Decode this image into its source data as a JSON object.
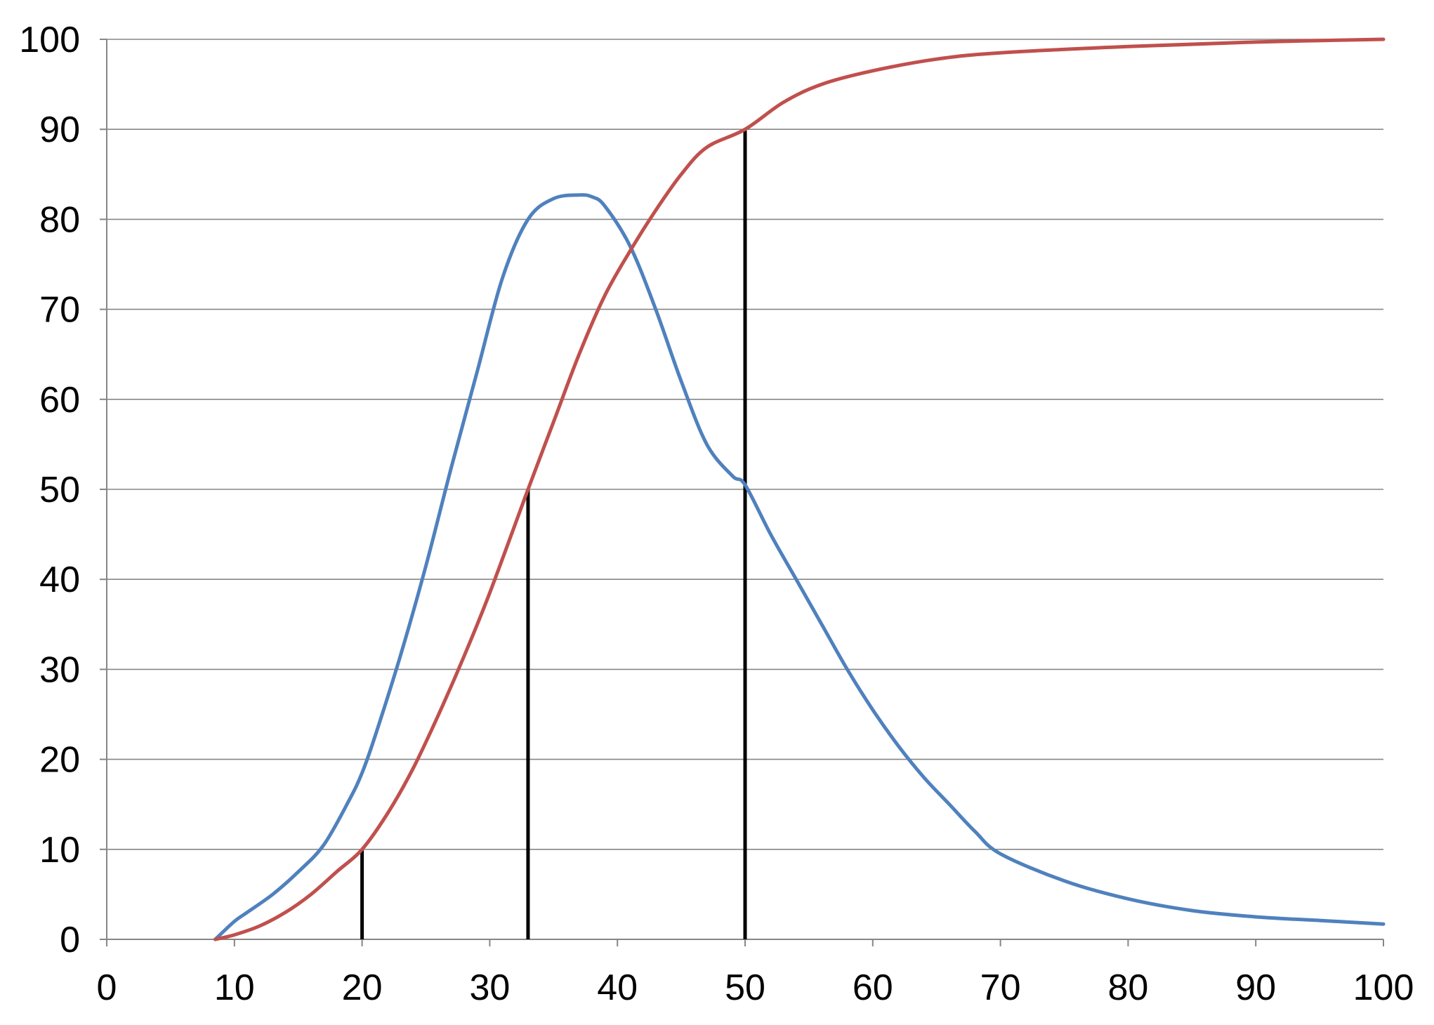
{
  "chart_data": {
    "type": "line",
    "title": "",
    "xlabel": "",
    "ylabel": "",
    "xlim": [
      0,
      100
    ],
    "ylim": [
      0,
      100
    ],
    "x_ticks": [
      0,
      10,
      20,
      30,
      40,
      50,
      60,
      70,
      80,
      90,
      100
    ],
    "y_ticks": [
      0,
      10,
      20,
      30,
      40,
      50,
      60,
      70,
      80,
      90,
      100
    ],
    "x_tick_labels": [
      "0",
      "10",
      "20",
      "30",
      "40",
      "50",
      "60",
      "70",
      "80",
      "90",
      "100"
    ],
    "y_tick_labels": [
      "0",
      "10",
      "20",
      "30",
      "40",
      "50",
      "60",
      "70",
      "80",
      "90",
      "100"
    ],
    "grid": "horizontal",
    "legend": "none",
    "series": [
      {
        "color": "#4F81BD",
        "x": [
          8.5,
          10,
          11,
          13,
          15,
          17,
          19,
          20,
          21,
          23,
          25,
          27,
          29,
          31,
          33,
          35,
          37,
          38,
          39,
          41,
          43,
          45,
          47,
          49,
          50,
          52,
          54,
          56,
          58,
          60,
          62,
          64,
          66,
          68,
          70,
          75,
          80,
          85,
          90,
          95,
          100
        ],
        "y": [
          0,
          2,
          3,
          5,
          7.5,
          10.5,
          15.5,
          18.5,
          22.5,
          31.5,
          41.5,
          52.5,
          63,
          73.5,
          80,
          82.3,
          82.7,
          82.5,
          81.5,
          77,
          70,
          62,
          55,
          51.5,
          50.5,
          45,
          40,
          35,
          30,
          25.5,
          21.5,
          18,
          15,
          12,
          9.5,
          6.5,
          4.5,
          3.2,
          2.5,
          2.1,
          1.7
        ]
      },
      {
        "color": "#C0504D",
        "x": [
          8.5,
          10,
          12,
          14,
          16,
          18,
          20,
          22,
          24,
          26,
          28,
          30,
          33,
          35,
          37,
          39,
          41,
          43,
          45,
          47,
          50,
          53,
          56,
          60,
          65,
          70,
          80,
          90,
          100
        ],
        "y": [
          0,
          0.5,
          1.5,
          3,
          5,
          7.5,
          10,
          14,
          19,
          25,
          31.5,
          38.5,
          50,
          57.5,
          65,
          71.5,
          76.5,
          81,
          85,
          88,
          90,
          93,
          95,
          96.5,
          97.8,
          98.5,
          99.2,
          99.7,
          100
        ]
      }
    ],
    "markers": [
      {
        "x": 20,
        "y": 10
      },
      {
        "x": 33,
        "y": 50
      },
      {
        "x": 50,
        "y": 90
      }
    ]
  }
}
